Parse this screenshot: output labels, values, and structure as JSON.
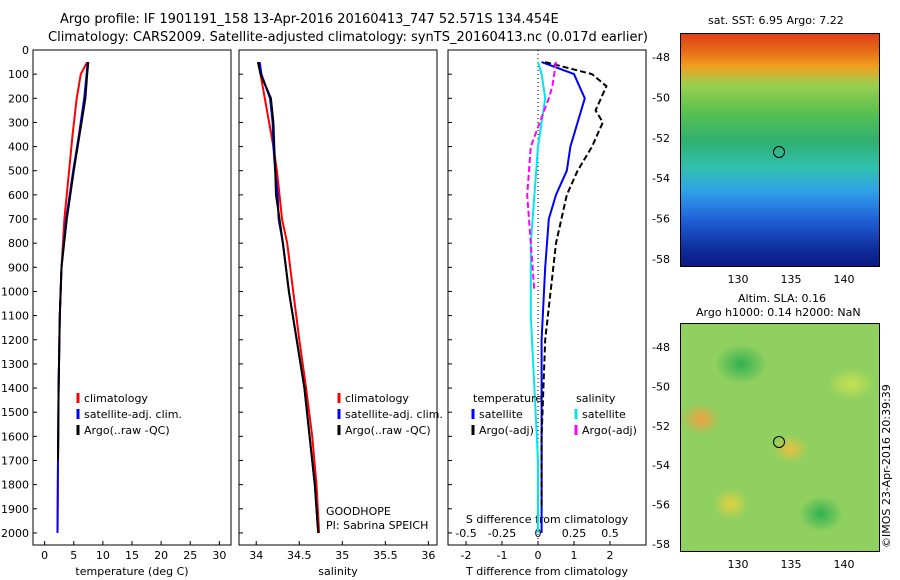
{
  "header": {
    "line1": "Argo profile: IF 1901191_158 13-Apr-2016 20160413_747 52.571S 134.454E",
    "line2": "Climatology: CARS2009. Satellite-adjusted climatology: synTS_20160413.nc (0.017d earlier)"
  },
  "colors": {
    "climatology": "#ff0000",
    "satellite": "#0000ff",
    "argo": "#000000",
    "sat_salinity": "#00e5ee",
    "argo_salinity_adj": "#ff00ff"
  },
  "depth_axis": {
    "ticks": [
      0,
      100,
      200,
      300,
      400,
      500,
      600,
      700,
      800,
      900,
      1000,
      1100,
      1200,
      1300,
      1400,
      1500,
      1600,
      1700,
      1800,
      1900,
      2000
    ],
    "min": 0,
    "max": 2050
  },
  "chart_data": [
    {
      "type": "line",
      "name": "temperature-profile",
      "xlabel": "temperature (deg C)",
      "xlim": [
        -2,
        32
      ],
      "xticks": [
        0,
        5,
        10,
        15,
        20,
        25,
        30
      ],
      "ylim": [
        0,
        2050
      ],
      "legend": [
        "climatology",
        "satellite-adj. clim.",
        "Argo(..raw -QC)"
      ],
      "series": [
        {
          "name": "climatology",
          "color": "#ff0000",
          "points": [
            [
              7.3,
              50
            ],
            [
              6.2,
              100
            ],
            [
              5.5,
              200
            ],
            [
              4.8,
              350
            ],
            [
              4.2,
              500
            ],
            [
              3.4,
              700
            ],
            [
              2.9,
              900
            ],
            [
              2.6,
              1100
            ],
            [
              2.4,
              1400
            ],
            [
              2.3,
              1700
            ],
            [
              2.2,
              2000
            ]
          ]
        },
        {
          "name": "satellite-adj. clim.",
          "color": "#0000ff",
          "points": [
            [
              7.4,
              50
            ],
            [
              7.2,
              100
            ],
            [
              6.8,
              200
            ],
            [
              5.9,
              350
            ],
            [
              4.9,
              500
            ],
            [
              3.7,
              700
            ],
            [
              2.9,
              900
            ],
            [
              2.6,
              1100
            ],
            [
              2.4,
              1400
            ],
            [
              2.3,
              1700
            ],
            [
              2.2,
              2000
            ]
          ]
        },
        {
          "name": "Argo(..raw -QC)",
          "color": "#000000",
          "points": [
            [
              7.5,
              50
            ],
            [
              7.3,
              100
            ],
            [
              7.0,
              200
            ],
            [
              6.0,
              350
            ],
            [
              5.0,
              500
            ],
            [
              3.8,
              700
            ],
            [
              2.9,
              900
            ],
            [
              2.6,
              1100
            ],
            [
              2.4,
              1400
            ],
            [
              2.3,
              1700
            ]
          ]
        }
      ]
    },
    {
      "type": "line",
      "name": "salinity-profile",
      "xlabel": "salinity",
      "xlim": [
        33.8,
        36.1
      ],
      "xticks": [
        34,
        34.5,
        35,
        35.5,
        36
      ],
      "ylim": [
        0,
        2050
      ],
      "legend": [
        "climatology",
        "satellite-adj. clim.",
        "Argo(..raw -QC)"
      ],
      "annotation": [
        "GOODHOPE",
        "PI: Sabrina SPEICH"
      ],
      "series": [
        {
          "name": "climatology",
          "color": "#ff0000",
          "points": [
            [
              34.03,
              50
            ],
            [
              34.05,
              100
            ],
            [
              34.1,
              200
            ],
            [
              34.15,
              300
            ],
            [
              34.2,
              400
            ],
            [
              34.24,
              500
            ],
            [
              34.27,
              600
            ],
            [
              34.3,
              700
            ],
            [
              34.36,
              800
            ],
            [
              34.43,
              1000
            ],
            [
              34.5,
              1200
            ],
            [
              34.58,
              1400
            ],
            [
              34.65,
              1600
            ],
            [
              34.7,
              1800
            ],
            [
              34.73,
              2000
            ]
          ]
        },
        {
          "name": "satellite-adj. clim.",
          "color": "#0000ff",
          "points": [
            [
              34.04,
              50
            ],
            [
              34.06,
              100
            ],
            [
              34.16,
              200
            ],
            [
              34.19,
              300
            ],
            [
              34.2,
              400
            ],
            [
              34.22,
              500
            ],
            [
              34.25,
              600
            ],
            [
              34.26,
              700
            ],
            [
              34.31,
              800
            ],
            [
              34.38,
              1000
            ],
            [
              34.47,
              1200
            ],
            [
              34.56,
              1400
            ],
            [
              34.62,
              1600
            ],
            [
              34.68,
              1800
            ],
            [
              34.72,
              2000
            ]
          ]
        },
        {
          "name": "Argo(..raw -QC)",
          "color": "#000000",
          "points": [
            [
              34.02,
              50
            ],
            [
              34.05,
              100
            ],
            [
              34.17,
              200
            ],
            [
              34.2,
              300
            ],
            [
              34.21,
              400
            ],
            [
              34.22,
              500
            ],
            [
              34.23,
              600
            ],
            [
              34.27,
              700
            ],
            [
              34.31,
              800
            ],
            [
              34.38,
              1000
            ],
            [
              34.47,
              1200
            ],
            [
              34.56,
              1400
            ],
            [
              34.62,
              1600
            ],
            [
              34.68,
              1800
            ],
            [
              34.72,
              2000
            ]
          ]
        }
      ]
    },
    {
      "type": "line",
      "name": "difference-profile",
      "xlabel": "T difference from climatology",
      "xlabel2": "S difference from climatology",
      "xlim": [
        -2.5,
        3
      ],
      "xticks": [
        -2,
        -1,
        0,
        1,
        2
      ],
      "xticks2": [
        {
          "v": -2,
          "label": "-0.5"
        },
        {
          "v": -1,
          "label": "-0.25"
        },
        {
          "v": 0,
          "label": "0"
        },
        {
          "v": 1,
          "label": "0.25"
        },
        {
          "v": 2,
          "label": "0.5"
        }
      ],
      "ylim": [
        0,
        2050
      ],
      "legend_temperature": {
        "heading": "temperature",
        "items": [
          "satellite",
          "Argo(-adj)"
        ]
      },
      "legend_salinity": {
        "heading": "salinity",
        "items": [
          "satellite",
          "Argo(-adj)"
        ]
      },
      "series": [
        {
          "name": "temperature satellite",
          "color": "#0000ff",
          "points": [
            [
              0.1,
              50
            ],
            [
              1.0,
              100
            ],
            [
              1.3,
              200
            ],
            [
              1.1,
              300
            ],
            [
              0.9,
              400
            ],
            [
              0.8,
              500
            ],
            [
              0.5,
              600
            ],
            [
              0.3,
              700
            ],
            [
              0.2,
              900
            ],
            [
              0.1,
              1200
            ],
            [
              0.1,
              1600
            ],
            [
              0.1,
              2000
            ]
          ]
        },
        {
          "name": "temperature Argo(-adj)",
          "color": "#000000",
          "dash": true,
          "points": [
            [
              0.2,
              50
            ],
            [
              1.5,
              100
            ],
            [
              1.9,
              150
            ],
            [
              1.6,
              250
            ],
            [
              1.8,
              300
            ],
            [
              1.5,
              400
            ],
            [
              1.1,
              500
            ],
            [
              0.8,
              600
            ],
            [
              0.5,
              800
            ],
            [
              0.2,
              1200
            ],
            [
              0.1,
              1600
            ],
            [
              0.1,
              1900
            ]
          ]
        },
        {
          "name": "salinity satellite",
          "color": "#00e5ee",
          "points": [
            [
              0.0,
              50
            ],
            [
              0.1,
              100
            ],
            [
              0.2,
              200
            ],
            [
              0.0,
              400
            ],
            [
              -0.1,
              600
            ],
            [
              -0.2,
              800
            ],
            [
              -0.2,
              1100
            ],
            [
              -0.1,
              1400
            ],
            [
              0.0,
              1700
            ],
            [
              0.0,
              2000
            ]
          ]
        },
        {
          "name": "salinity Argo(-adj)",
          "color": "#ff00ff",
          "dash": true,
          "points": [
            [
              0.5,
              50
            ],
            [
              0.4,
              150
            ],
            [
              0.3,
              200
            ],
            [
              -0.2,
              400
            ],
            [
              -0.3,
              600
            ],
            [
              -0.2,
              800
            ],
            [
              -0.1,
              1000
            ]
          ]
        }
      ]
    }
  ],
  "sst_map": {
    "title": "sat. SST: 6.95 Argo: 7.22",
    "xticks": [
      "130",
      "135",
      "140"
    ],
    "yticks": [
      "-48",
      "-50",
      "-52",
      "-54",
      "-56",
      "-58"
    ]
  },
  "sla_map": {
    "title1": "Altim. SLA: 0.16",
    "title2": "Argo h1000: 0.14 h2000: NaN",
    "xticks": [
      "130",
      "135",
      "140"
    ],
    "yticks": [
      "-48",
      "-50",
      "-52",
      "-54",
      "-56",
      "-58"
    ]
  },
  "credit": "©IMOS 23-Apr-2016 20:39:39"
}
